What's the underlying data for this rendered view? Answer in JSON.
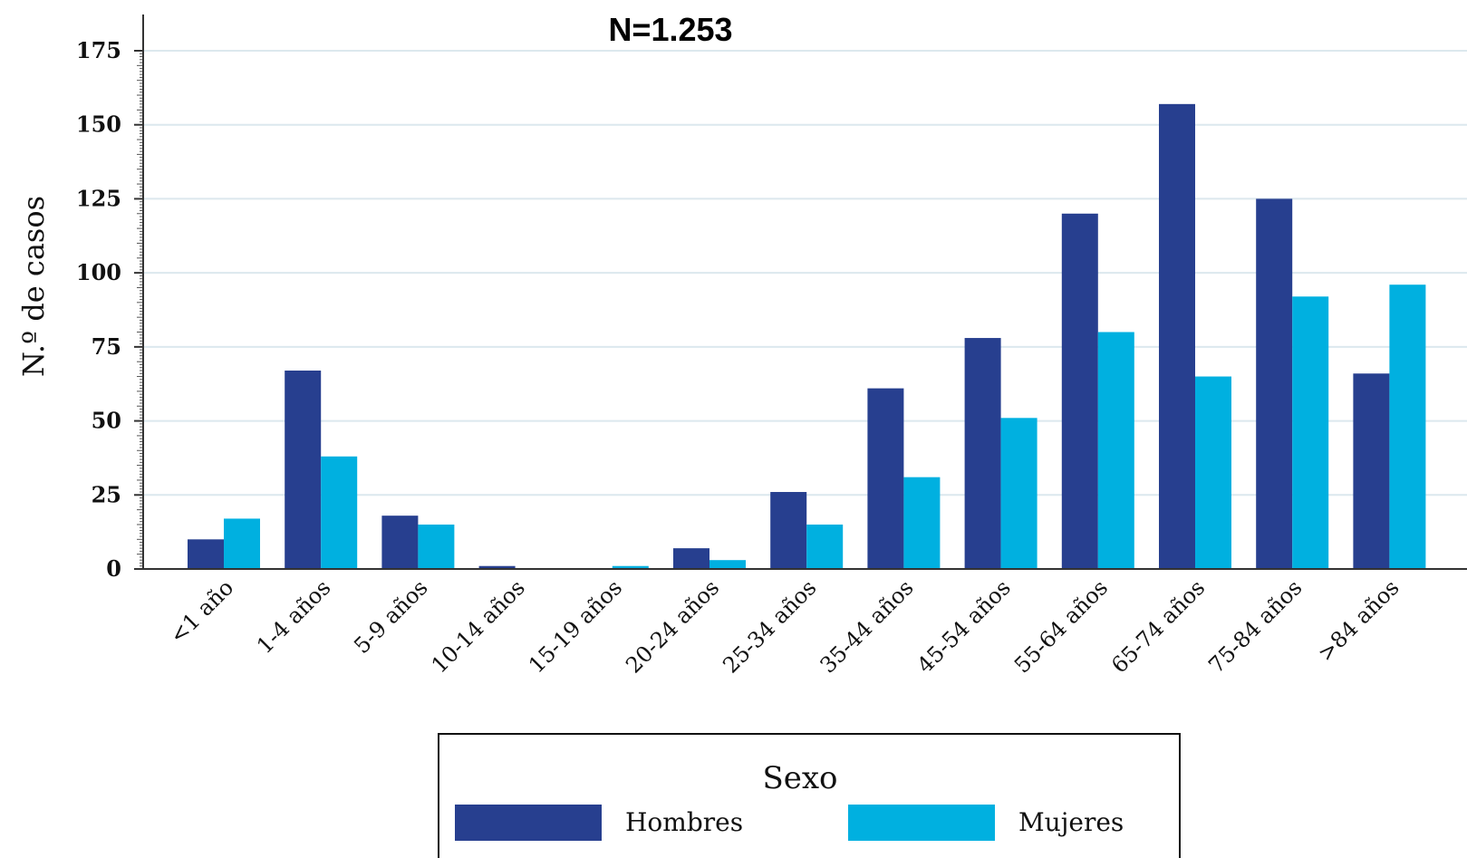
{
  "chart_data": {
    "type": "bar",
    "title": "N=1.253",
    "ylabel": "N.º de casos",
    "xlabel": "",
    "ylim": [
      0,
      175
    ],
    "yticks": [
      0,
      25,
      50,
      75,
      100,
      125,
      150,
      175
    ],
    "grid": true,
    "categories": [
      "<1 año",
      "1-4 años",
      "5-9 años",
      "10-14 años",
      "15-19 años",
      "20-24 años",
      "25-34 años",
      "35-44 años",
      "45-54 años",
      "55-64 años",
      "65-74 años",
      "75-84 años",
      ">84 años"
    ],
    "series": [
      {
        "name": "Hombres",
        "color": "#273f8f",
        "values": [
          10,
          67,
          18,
          1,
          0,
          7,
          26,
          61,
          78,
          120,
          157,
          125,
          66
        ]
      },
      {
        "name": "Mujeres",
        "color": "#00b0e0",
        "values": [
          17,
          38,
          15,
          0,
          1,
          3,
          15,
          31,
          51,
          80,
          65,
          92,
          96
        ]
      }
    ],
    "legend": {
      "title": "Sexo",
      "placement": "bottom"
    }
  }
}
